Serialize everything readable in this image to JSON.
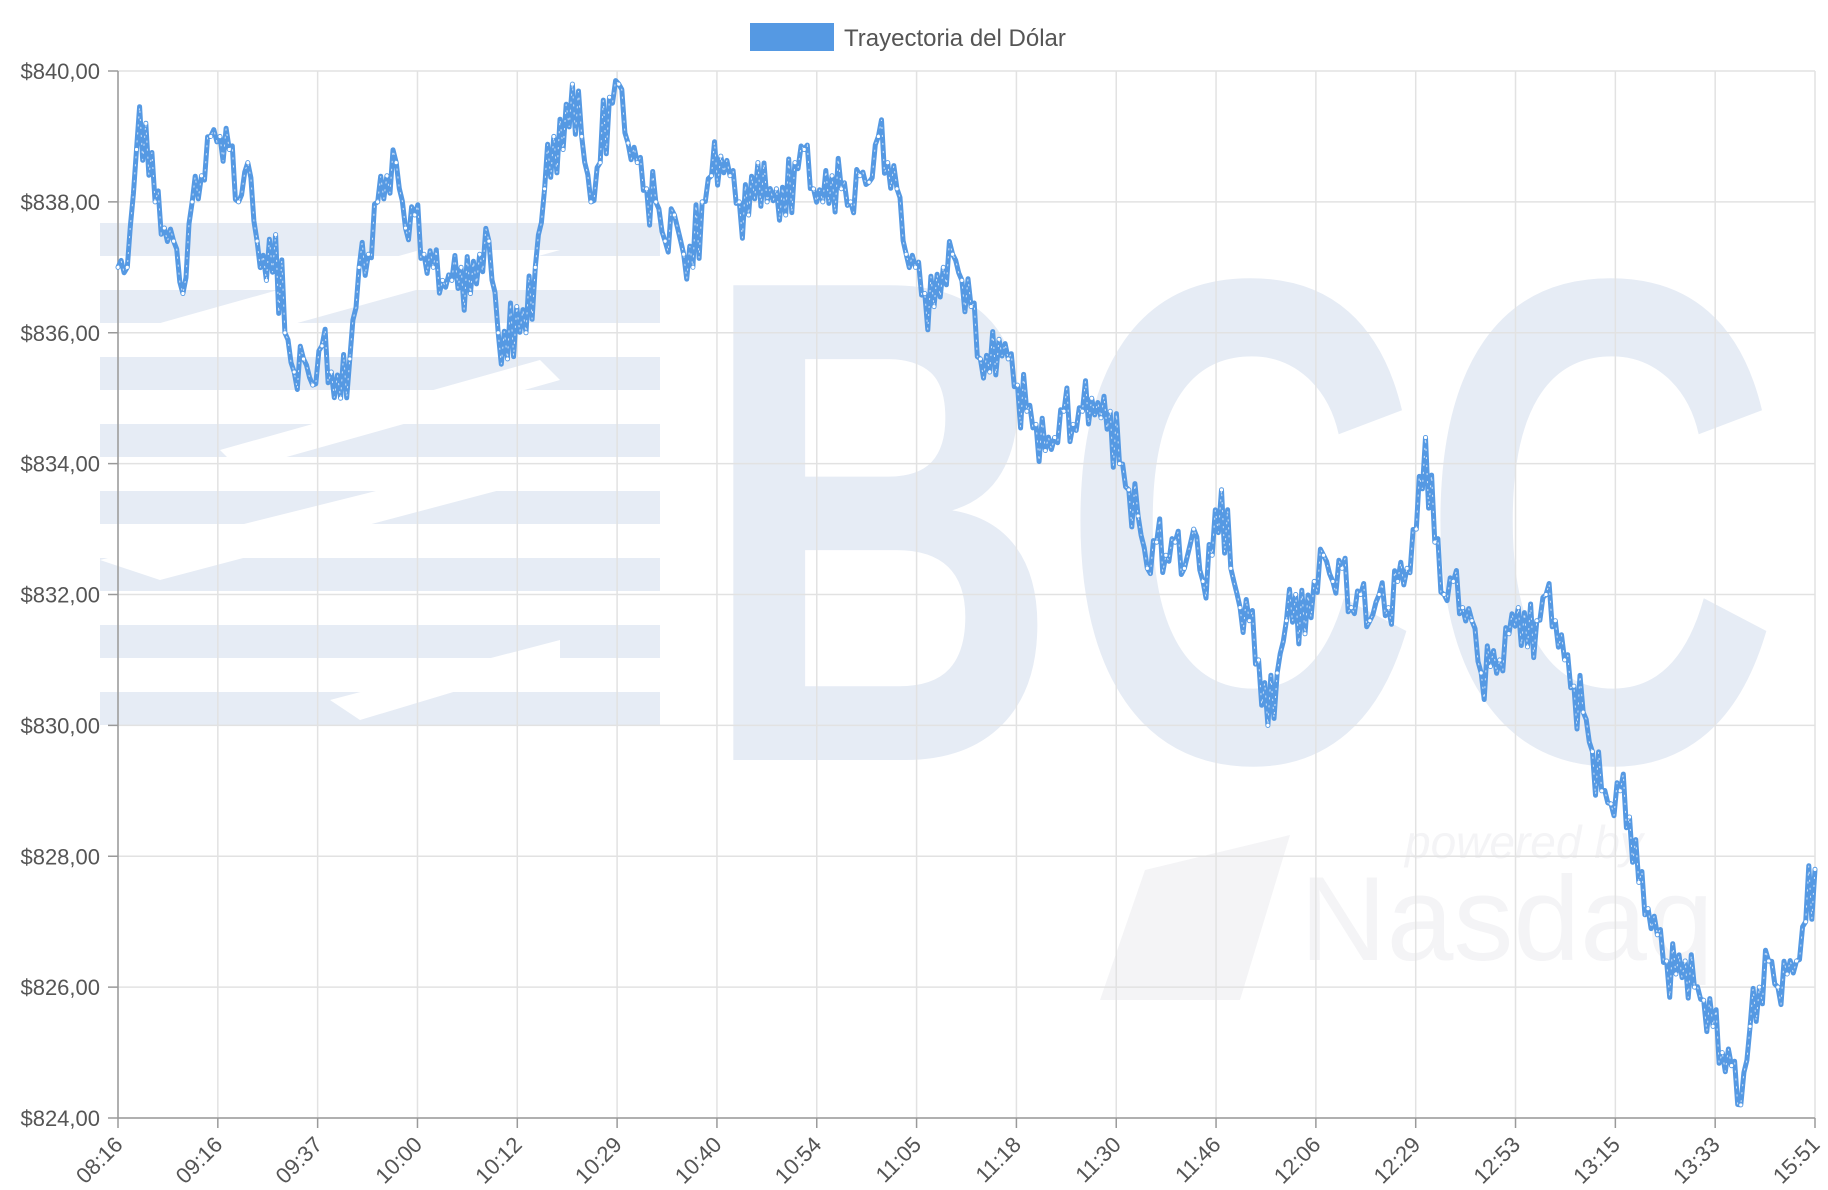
{
  "chart_data": {
    "type": "line",
    "legend": {
      "label": "Trayectoria del Dólar",
      "position": "top-center"
    },
    "series_color": "#5599e3",
    "watermark": {
      "logo_text": "BCC",
      "powered_by": "powered by",
      "nasdaq": "Nasdaq"
    },
    "grid": true,
    "ylim": [
      824,
      840
    ],
    "y_ticks": [
      840,
      838,
      836,
      834,
      832,
      830,
      828,
      826,
      824
    ],
    "y_tick_labels": [
      "$840,00",
      "$838,00",
      "$836,00",
      "$834,00",
      "$832,00",
      "$830,00",
      "$828,00",
      "$826,00",
      "$824,00"
    ],
    "x_tick_labels": [
      "08:16",
      "09:16",
      "09:37",
      "10:00",
      "10:12",
      "10:29",
      "10:40",
      "10:54",
      "11:05",
      "11:18",
      "11:30",
      "11:46",
      "12:06",
      "12:29",
      "12:53",
      "13:15",
      "13:33",
      "15:51"
    ],
    "series": [
      {
        "name": "Trayectoria del Dólar",
        "values": [
          837.0,
          837.0,
          838.8,
          839.2,
          838.0,
          837.6,
          837.4,
          836.6,
          838.0,
          838.4,
          839.0,
          839.0,
          838.8,
          838.0,
          838.6,
          837.4,
          836.8,
          837.5,
          836.0,
          835.4,
          835.6,
          835.2,
          835.8,
          835.4,
          835.0,
          835.6,
          837.0,
          837.2,
          838.0,
          838.4,
          838.6,
          837.6,
          837.8,
          837.2,
          837.0,
          836.8,
          836.8,
          837.0,
          836.6,
          837.2,
          837.4,
          836.0,
          835.6,
          836.4,
          836.0,
          837.0,
          838.2,
          839.0,
          838.8,
          839.8,
          839.0,
          838.0,
          838.6,
          839.6,
          839.8,
          838.9,
          838.6,
          838.2,
          838.0,
          837.4,
          837.8,
          837.2,
          837.0,
          838.0,
          838.4,
          838.7,
          838.4,
          838.0,
          837.8,
          838.6,
          838.0,
          838.2,
          837.8,
          838.6,
          838.8,
          838.2,
          838.0,
          838.4,
          838.2,
          838.0,
          838.4,
          838.3,
          839.0,
          838.6,
          838.2,
          837.2,
          837.0,
          836.6,
          836.4,
          837.0,
          837.2,
          836.8,
          836.4,
          835.6,
          835.4,
          835.9,
          835.6,
          835.2,
          834.8,
          834.6,
          834.2,
          834.4,
          834.8,
          834.6,
          834.8,
          835.0,
          834.7,
          834.8,
          834.0,
          833.6,
          833.2,
          832.4,
          832.8,
          832.6,
          832.8,
          832.4,
          833.0,
          832.2,
          832.6,
          833.6,
          832.4,
          831.8,
          831.6,
          831.0,
          830.0,
          830.8,
          831.6,
          832.0,
          831.4,
          832.2,
          832.6,
          832.2,
          832.4,
          831.8,
          832.0,
          831.6,
          832.0,
          831.8,
          832.2,
          832.4,
          833.0,
          834.4,
          832.8,
          832.0,
          832.2,
          831.8,
          831.6,
          830.8,
          830.9,
          831.0,
          831.4,
          831.8,
          831.2,
          831.6,
          832.0,
          831.6,
          831.0,
          830.6,
          830.2,
          829.6,
          829.0,
          828.8,
          829.0,
          828.6,
          827.6,
          827.2,
          826.8,
          826.4,
          826.2,
          826.4,
          826.0,
          825.8,
          825.4,
          825.0,
          824.8,
          824.2,
          825.4,
          826.0,
          826.4,
          826.0,
          826.2,
          826.4,
          827.0,
          827.8
        ]
      }
    ]
  }
}
